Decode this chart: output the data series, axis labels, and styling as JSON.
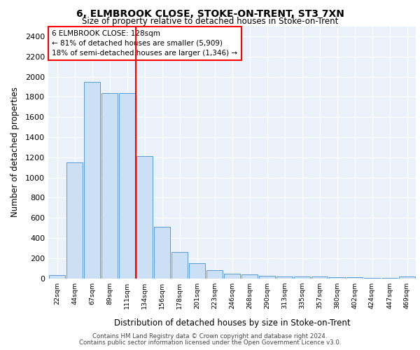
{
  "title1": "6, ELMBROOK CLOSE, STOKE-ON-TRENT, ST3 7XN",
  "title2": "Size of property relative to detached houses in Stoke-on-Trent",
  "xlabel": "Distribution of detached houses by size in Stoke-on-Trent",
  "ylabel": "Number of detached properties",
  "bar_labels": [
    "22sqm",
    "44sqm",
    "67sqm",
    "89sqm",
    "111sqm",
    "134sqm",
    "156sqm",
    "178sqm",
    "201sqm",
    "223sqm",
    "246sqm",
    "268sqm",
    "290sqm",
    "313sqm",
    "335sqm",
    "357sqm",
    "380sqm",
    "402sqm",
    "424sqm",
    "447sqm",
    "469sqm"
  ],
  "bar_heights": [
    30,
    1150,
    1950,
    1840,
    1840,
    1210,
    510,
    260,
    150,
    80,
    45,
    40,
    25,
    20,
    20,
    15,
    10,
    10,
    5,
    5,
    20
  ],
  "bar_color": "#cce0f5",
  "bar_edge_color": "#5b9bd5",
  "annotation_text": "6 ELMBROOK CLOSE: 128sqm\n← 81% of detached houses are smaller (5,909)\n18% of semi-detached houses are larger (1,346) →",
  "ylim": [
    0,
    2500
  ],
  "yticks": [
    0,
    200,
    400,
    600,
    800,
    1000,
    1200,
    1400,
    1600,
    1800,
    2000,
    2200,
    2400
  ],
  "bg_color": "#eaf1f9",
  "footer1": "Contains HM Land Registry data © Crown copyright and database right 2024.",
  "footer2": "Contains public sector information licensed under the Open Government Licence v3.0."
}
